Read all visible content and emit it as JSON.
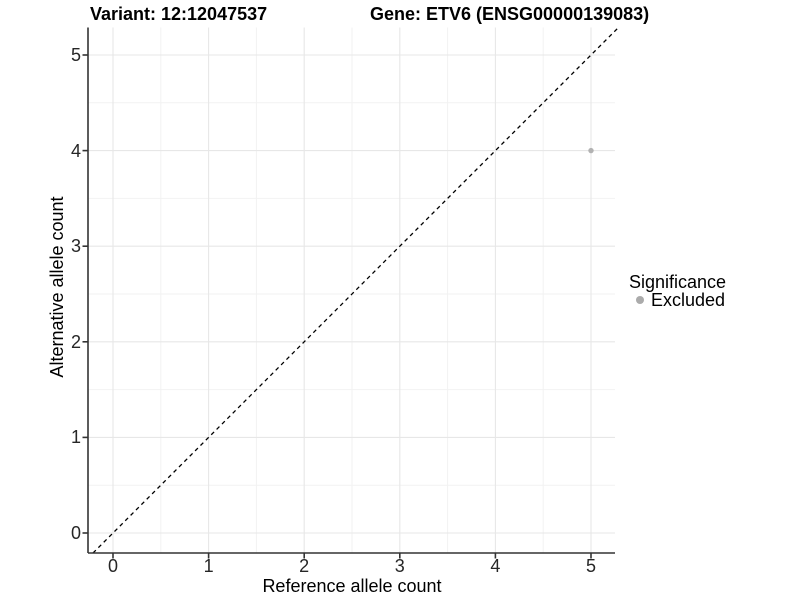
{
  "colors": {
    "background": "#ffffff",
    "grid_major": "#e7e7e7",
    "grid_minor": "#f2f2f2",
    "axis_line": "#333333",
    "tick_text": "#262626",
    "title_text": "#000000",
    "point_fill": "#b2b2b2",
    "legend_dot": "#ababab",
    "identity_line": "#000000"
  },
  "chart_data": {
    "type": "scatter",
    "title_left": "Variant: 12:12047537",
    "title_right": "Gene: ETV6 (ENSG00000139083)",
    "xlabel": "Reference allele count",
    "ylabel": "Alternative allele count",
    "xlim": [
      -0.26,
      5.29
    ],
    "ylim": [
      -0.21,
      5.29
    ],
    "x_ticks": [
      0,
      1,
      2,
      3,
      4,
      5
    ],
    "y_ticks": [
      0,
      1,
      2,
      3,
      4,
      5
    ],
    "minor_gridlines": [
      0.5,
      1.5,
      2.5,
      3.5,
      4.5
    ],
    "grid": true,
    "legend_position": "right",
    "legend_title": "Significance",
    "series": [
      {
        "name": "Excluded",
        "color": "#b2b2b2",
        "points": [
          {
            "x": 5,
            "y": 4
          }
        ]
      }
    ],
    "reference_line": {
      "type": "identity",
      "style": "dashed",
      "color": "#000000"
    }
  }
}
